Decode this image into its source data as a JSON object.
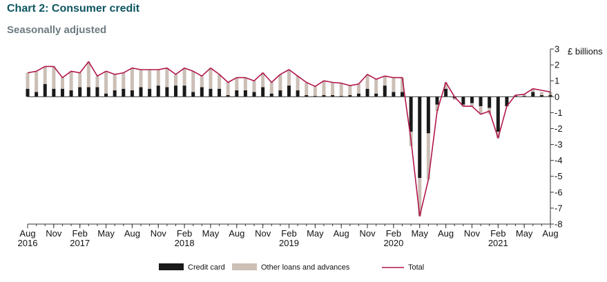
{
  "title": "Chart 2: Consumer credit",
  "subtitle": "Seasonally adjusted",
  "colors": {
    "credit_card": "#1a1a1a",
    "other_loans": "#cbbfb6",
    "total": "#b0154a",
    "axis": "#333333",
    "title": "#0d5560"
  },
  "chart_data": {
    "type": "bar",
    "unit_label": "£ billions",
    "ylim": [
      -8,
      3
    ],
    "yticks": [
      3,
      2,
      1,
      0,
      -1,
      -2,
      -3,
      -4,
      -5,
      -6,
      -7,
      -8
    ],
    "grid": false,
    "legend_position": "bottom",
    "x_start": "2016-08",
    "x_end": "2021-08",
    "x_tick_labels": [
      {
        "month": "Aug",
        "year": "2016"
      },
      {
        "month": "Nov",
        "year": ""
      },
      {
        "month": "Feb",
        "year": "2017"
      },
      {
        "month": "May",
        "year": ""
      },
      {
        "month": "Aug",
        "year": ""
      },
      {
        "month": "Nov",
        "year": ""
      },
      {
        "month": "Feb",
        "year": "2018"
      },
      {
        "month": "May",
        "year": ""
      },
      {
        "month": "Aug",
        "year": ""
      },
      {
        "month": "Nov",
        "year": ""
      },
      {
        "month": "Feb",
        "year": "2019"
      },
      {
        "month": "May",
        "year": ""
      },
      {
        "month": "Aug",
        "year": ""
      },
      {
        "month": "Nov",
        "year": ""
      },
      {
        "month": "Feb",
        "year": "2020"
      },
      {
        "month": "May",
        "year": ""
      },
      {
        "month": "Aug",
        "year": ""
      },
      {
        "month": "Nov",
        "year": ""
      },
      {
        "month": "Feb",
        "year": "2021"
      },
      {
        "month": "May",
        "year": ""
      },
      {
        "month": "Aug",
        "year": ""
      }
    ],
    "series": [
      {
        "name": "Credit card",
        "kind": "bar",
        "values": [
          0.5,
          0.3,
          0.8,
          0.5,
          0.5,
          0.4,
          0.6,
          0.6,
          0.6,
          0.2,
          0.4,
          0.5,
          0.4,
          0.6,
          0.5,
          0.7,
          0.6,
          0.7,
          0.7,
          0.3,
          0.6,
          0.5,
          0.5,
          0.1,
          0.4,
          0.4,
          0.3,
          0.6,
          0.2,
          0.4,
          0.7,
          0.4,
          0.1,
          0.05,
          0.1,
          0.1,
          0.05,
          0.1,
          0.2,
          0.5,
          0.2,
          0.7,
          0.3,
          0.3,
          -2.2,
          -5.1,
          -2.3,
          -0.5,
          0.5,
          -0.1,
          -0.5,
          -0.4,
          -0.6,
          -0.7,
          -2.2,
          -0.6,
          0.05,
          0.05,
          0.3,
          0.1,
          0.1
        ]
      },
      {
        "name": "Other loans and advances",
        "kind": "bar",
        "values": [
          1.0,
          1.3,
          1.1,
          1.4,
          0.7,
          1.2,
          0.9,
          1.6,
          0.7,
          1.4,
          1.0,
          1.0,
          1.4,
          1.1,
          1.2,
          1.0,
          1.2,
          0.7,
          1.1,
          1.3,
          0.7,
          1.3,
          0.9,
          0.8,
          0.8,
          0.8,
          0.7,
          0.9,
          0.7,
          1.0,
          1.0,
          0.9,
          0.8,
          0.6,
          0.9,
          0.8,
          0.8,
          0.6,
          0.6,
          0.9,
          0.9,
          0.6,
          0.9,
          0.9,
          -0.9,
          -2.4,
          -2.9,
          -0.4,
          0.4,
          -0.1,
          -0.1,
          -0.2,
          -0.5,
          -0.4,
          -0.4,
          0.0,
          0.05,
          0.1,
          0.2,
          0.2,
          0.2
        ]
      },
      {
        "name": "Total",
        "kind": "line",
        "values": [
          1.5,
          1.6,
          1.9,
          1.9,
          1.2,
          1.6,
          1.5,
          2.2,
          1.3,
          1.6,
          1.4,
          1.5,
          1.8,
          1.7,
          1.7,
          1.7,
          1.8,
          1.4,
          1.8,
          1.6,
          1.3,
          1.8,
          1.4,
          0.9,
          1.2,
          1.2,
          1.0,
          1.5,
          0.9,
          1.4,
          1.7,
          1.3,
          0.9,
          0.65,
          1.0,
          0.9,
          0.85,
          0.7,
          0.8,
          1.4,
          1.1,
          1.3,
          1.2,
          1.2,
          -2.7,
          -7.5,
          -5.2,
          -0.9,
          0.9,
          0.0,
          -0.6,
          -0.6,
          -1.1,
          -0.9,
          -2.6,
          -0.6,
          0.1,
          0.15,
          0.5,
          0.4,
          0.3
        ]
      }
    ]
  }
}
